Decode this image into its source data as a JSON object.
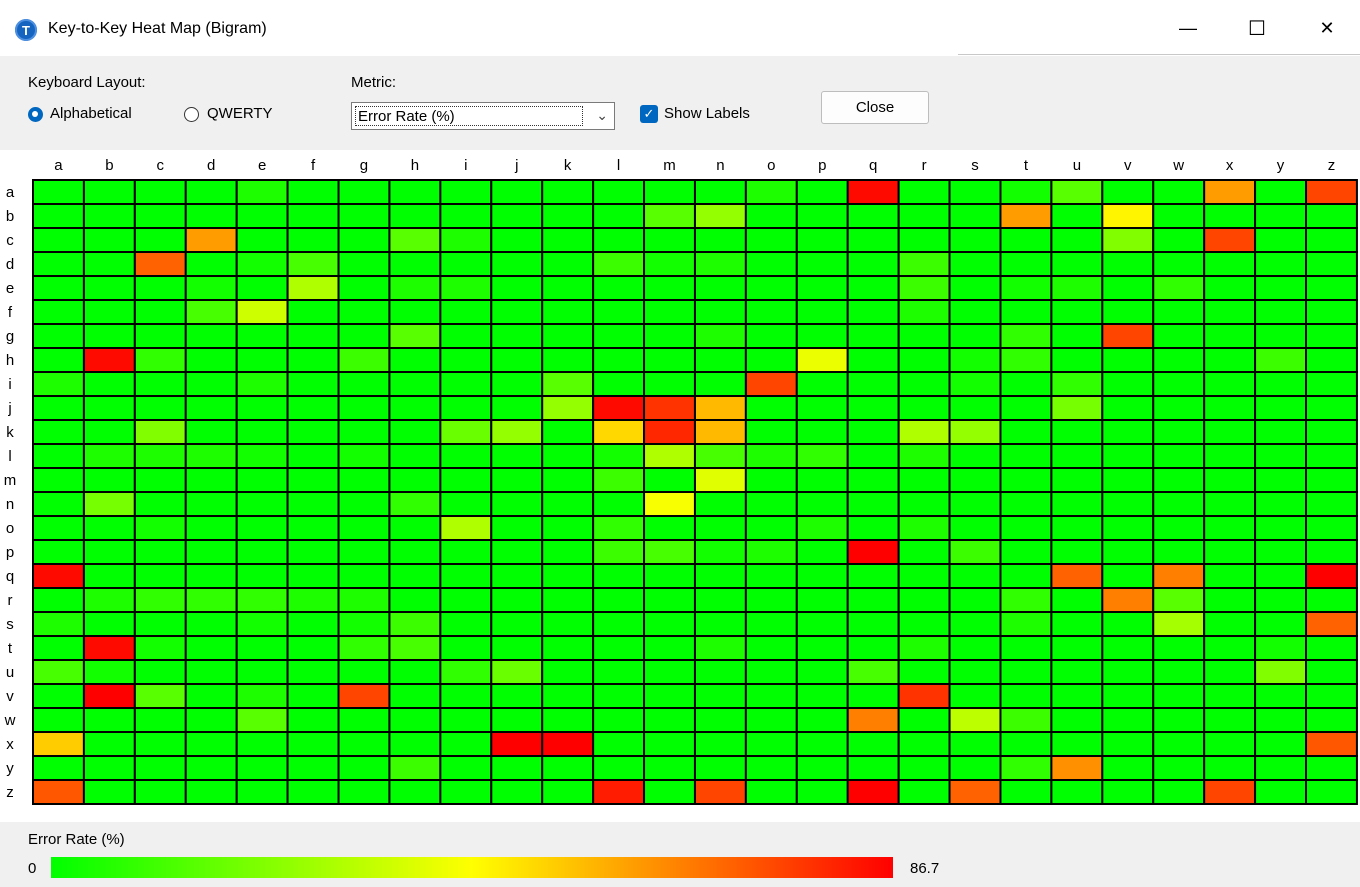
{
  "window": {
    "title": "Key-to-Key Heat Map (Bigram)",
    "app_icon_glyph": "T",
    "minimize_glyph": "—",
    "maximize_glyph": "☐",
    "close_glyph": "✕"
  },
  "controls": {
    "layout_label": "Keyboard Layout:",
    "layout_options": [
      "Alphabetical",
      "QWERTY"
    ],
    "layout_selected": "Alphabetical",
    "metric_label": "Metric:",
    "metric_value": "Error Rate (%)",
    "show_labels_label": "Show Labels",
    "show_labels_checked": true,
    "close_label": "Close"
  },
  "chart_data": {
    "type": "heatmap",
    "rows": [
      "a",
      "b",
      "c",
      "d",
      "e",
      "f",
      "g",
      "h",
      "i",
      "j",
      "k",
      "l",
      "m",
      "n",
      "o",
      "p",
      "q",
      "r",
      "s",
      "t",
      "u",
      "v",
      "w",
      "x",
      "y",
      "z"
    ],
    "columns": [
      "a",
      "b",
      "c",
      "d",
      "e",
      "f",
      "g",
      "h",
      "i",
      "j",
      "k",
      "l",
      "m",
      "n",
      "o",
      "p",
      "q",
      "r",
      "s",
      "t",
      "u",
      "v",
      "w",
      "x",
      "y",
      "z"
    ],
    "metric": "Error Rate (%)",
    "scale_min": 0,
    "scale_max": 86.7,
    "color_low": "#00ff00",
    "color_mid": "#ffff00",
    "color_high": "#ff0000",
    "values": [
      [
        0,
        0,
        0,
        0,
        5,
        0,
        0,
        0,
        0,
        0,
        0,
        0,
        0,
        0,
        5,
        0,
        85,
        0,
        0,
        3,
        15,
        0,
        0,
        60,
        0,
        75
      ],
      [
        0,
        0,
        0,
        0,
        0,
        0,
        0,
        0,
        0,
        0,
        0,
        0,
        15,
        25,
        0,
        0,
        0,
        0,
        0,
        60,
        0,
        45,
        0,
        0,
        0,
        0
      ],
      [
        0,
        0,
        0,
        60,
        0,
        0,
        0,
        15,
        5,
        0,
        0,
        0,
        0,
        0,
        0,
        0,
        0,
        0,
        0,
        0,
        0,
        22,
        0,
        75,
        0,
        0
      ],
      [
        0,
        0,
        70,
        0,
        3,
        12,
        0,
        0,
        0,
        0,
        0,
        10,
        3,
        5,
        0,
        0,
        0,
        10,
        0,
        0,
        0,
        0,
        0,
        0,
        0,
        0
      ],
      [
        0,
        0,
        0,
        3,
        0,
        30,
        0,
        5,
        5,
        0,
        0,
        0,
        0,
        0,
        0,
        0,
        0,
        10,
        0,
        3,
        5,
        0,
        8,
        0,
        0,
        0
      ],
      [
        0,
        0,
        0,
        12,
        35,
        0,
        0,
        0,
        0,
        0,
        0,
        0,
        0,
        0,
        0,
        0,
        0,
        5,
        0,
        0,
        0,
        0,
        0,
        0,
        0,
        0
      ],
      [
        0,
        0,
        0,
        0,
        0,
        0,
        0,
        15,
        0,
        0,
        0,
        0,
        0,
        5,
        0,
        0,
        0,
        0,
        0,
        8,
        0,
        75,
        0,
        0,
        0,
        0
      ],
      [
        0,
        85,
        8,
        0,
        0,
        0,
        10,
        0,
        0,
        0,
        0,
        0,
        0,
        0,
        0,
        40,
        0,
        0,
        3,
        8,
        0,
        0,
        0,
        0,
        10,
        0
      ],
      [
        5,
        0,
        0,
        0,
        5,
        0,
        0,
        0,
        0,
        0,
        15,
        0,
        0,
        0,
        75,
        0,
        0,
        0,
        3,
        0,
        8,
        0,
        0,
        0,
        0,
        0
      ],
      [
        0,
        0,
        0,
        0,
        0,
        0,
        0,
        0,
        0,
        0,
        25,
        85,
        78,
        55,
        0,
        0,
        0,
        0,
        0,
        0,
        20,
        0,
        0,
        0,
        0,
        0
      ],
      [
        0,
        0,
        22,
        0,
        0,
        0,
        0,
        0,
        18,
        25,
        0,
        50,
        80,
        55,
        0,
        0,
        0,
        30,
        25,
        0,
        0,
        0,
        0,
        0,
        0,
        0
      ],
      [
        0,
        5,
        5,
        5,
        3,
        0,
        3,
        0,
        0,
        0,
        0,
        3,
        30,
        12,
        5,
        8,
        0,
        5,
        0,
        0,
        0,
        0,
        0,
        0,
        0,
        0
      ],
      [
        0,
        0,
        0,
        0,
        0,
        0,
        0,
        0,
        0,
        0,
        0,
        10,
        0,
        38,
        0,
        0,
        0,
        0,
        0,
        0,
        0,
        0,
        0,
        0,
        0,
        0
      ],
      [
        0,
        20,
        0,
        0,
        0,
        0,
        0,
        8,
        0,
        0,
        0,
        0,
        42,
        0,
        0,
        0,
        0,
        0,
        0,
        0,
        0,
        0,
        0,
        0,
        0,
        0
      ],
      [
        0,
        0,
        3,
        0,
        0,
        0,
        0,
        0,
        30,
        0,
        0,
        8,
        0,
        0,
        0,
        5,
        0,
        5,
        0,
        0,
        0,
        0,
        0,
        0,
        0,
        0
      ],
      [
        0,
        0,
        0,
        0,
        0,
        0,
        0,
        0,
        0,
        0,
        0,
        10,
        12,
        3,
        5,
        0,
        88,
        0,
        10,
        0,
        0,
        0,
        0,
        0,
        0,
        0
      ],
      [
        85,
        0,
        0,
        0,
        0,
        0,
        0,
        0,
        0,
        0,
        0,
        0,
        0,
        0,
        0,
        0,
        0,
        0,
        0,
        0,
        70,
        0,
        65,
        0,
        0,
        90
      ],
      [
        0,
        5,
        8,
        8,
        8,
        5,
        5,
        0,
        0,
        0,
        0,
        0,
        0,
        0,
        0,
        0,
        0,
        0,
        0,
        8,
        0,
        65,
        15,
        0,
        0,
        0
      ],
      [
        5,
        0,
        0,
        0,
        3,
        0,
        3,
        10,
        0,
        0,
        0,
        0,
        0,
        0,
        0,
        0,
        0,
        0,
        0,
        5,
        0,
        0,
        28,
        0,
        0,
        70
      ],
      [
        0,
        85,
        3,
        0,
        0,
        0,
        8,
        12,
        0,
        0,
        0,
        0,
        0,
        5,
        0,
        0,
        0,
        5,
        0,
        0,
        0,
        0,
        0,
        0,
        3,
        0
      ],
      [
        12,
        3,
        0,
        0,
        0,
        0,
        0,
        0,
        8,
        18,
        0,
        0,
        0,
        0,
        0,
        0,
        12,
        0,
        0,
        0,
        0,
        0,
        0,
        0,
        22,
        0
      ],
      [
        0,
        88,
        15,
        0,
        5,
        0,
        75,
        0,
        0,
        0,
        0,
        0,
        0,
        0,
        0,
        0,
        0,
        78,
        0,
        0,
        0,
        0,
        0,
        0,
        0,
        0
      ],
      [
        0,
        0,
        0,
        0,
        15,
        0,
        0,
        0,
        0,
        0,
        0,
        0,
        0,
        0,
        0,
        0,
        65,
        0,
        32,
        10,
        0,
        0,
        0,
        0,
        0,
        0
      ],
      [
        52,
        0,
        0,
        0,
        0,
        0,
        0,
        0,
        0,
        88,
        90,
        0,
        0,
        0,
        0,
        0,
        0,
        0,
        0,
        0,
        0,
        0,
        0,
        0,
        0,
        72
      ],
      [
        0,
        0,
        0,
        0,
        0,
        0,
        0,
        10,
        0,
        0,
        0,
        0,
        0,
        0,
        0,
        0,
        0,
        0,
        0,
        8,
        62,
        0,
        0,
        0,
        0,
        0
      ],
      [
        72,
        0,
        0,
        0,
        0,
        0,
        0,
        0,
        0,
        0,
        0,
        82,
        0,
        75,
        0,
        0,
        88,
        0,
        70,
        0,
        0,
        0,
        0,
        75,
        0,
        0
      ]
    ]
  },
  "legend": {
    "title": "Error Rate (%)",
    "min_label": "0",
    "max_label": "86.7"
  }
}
